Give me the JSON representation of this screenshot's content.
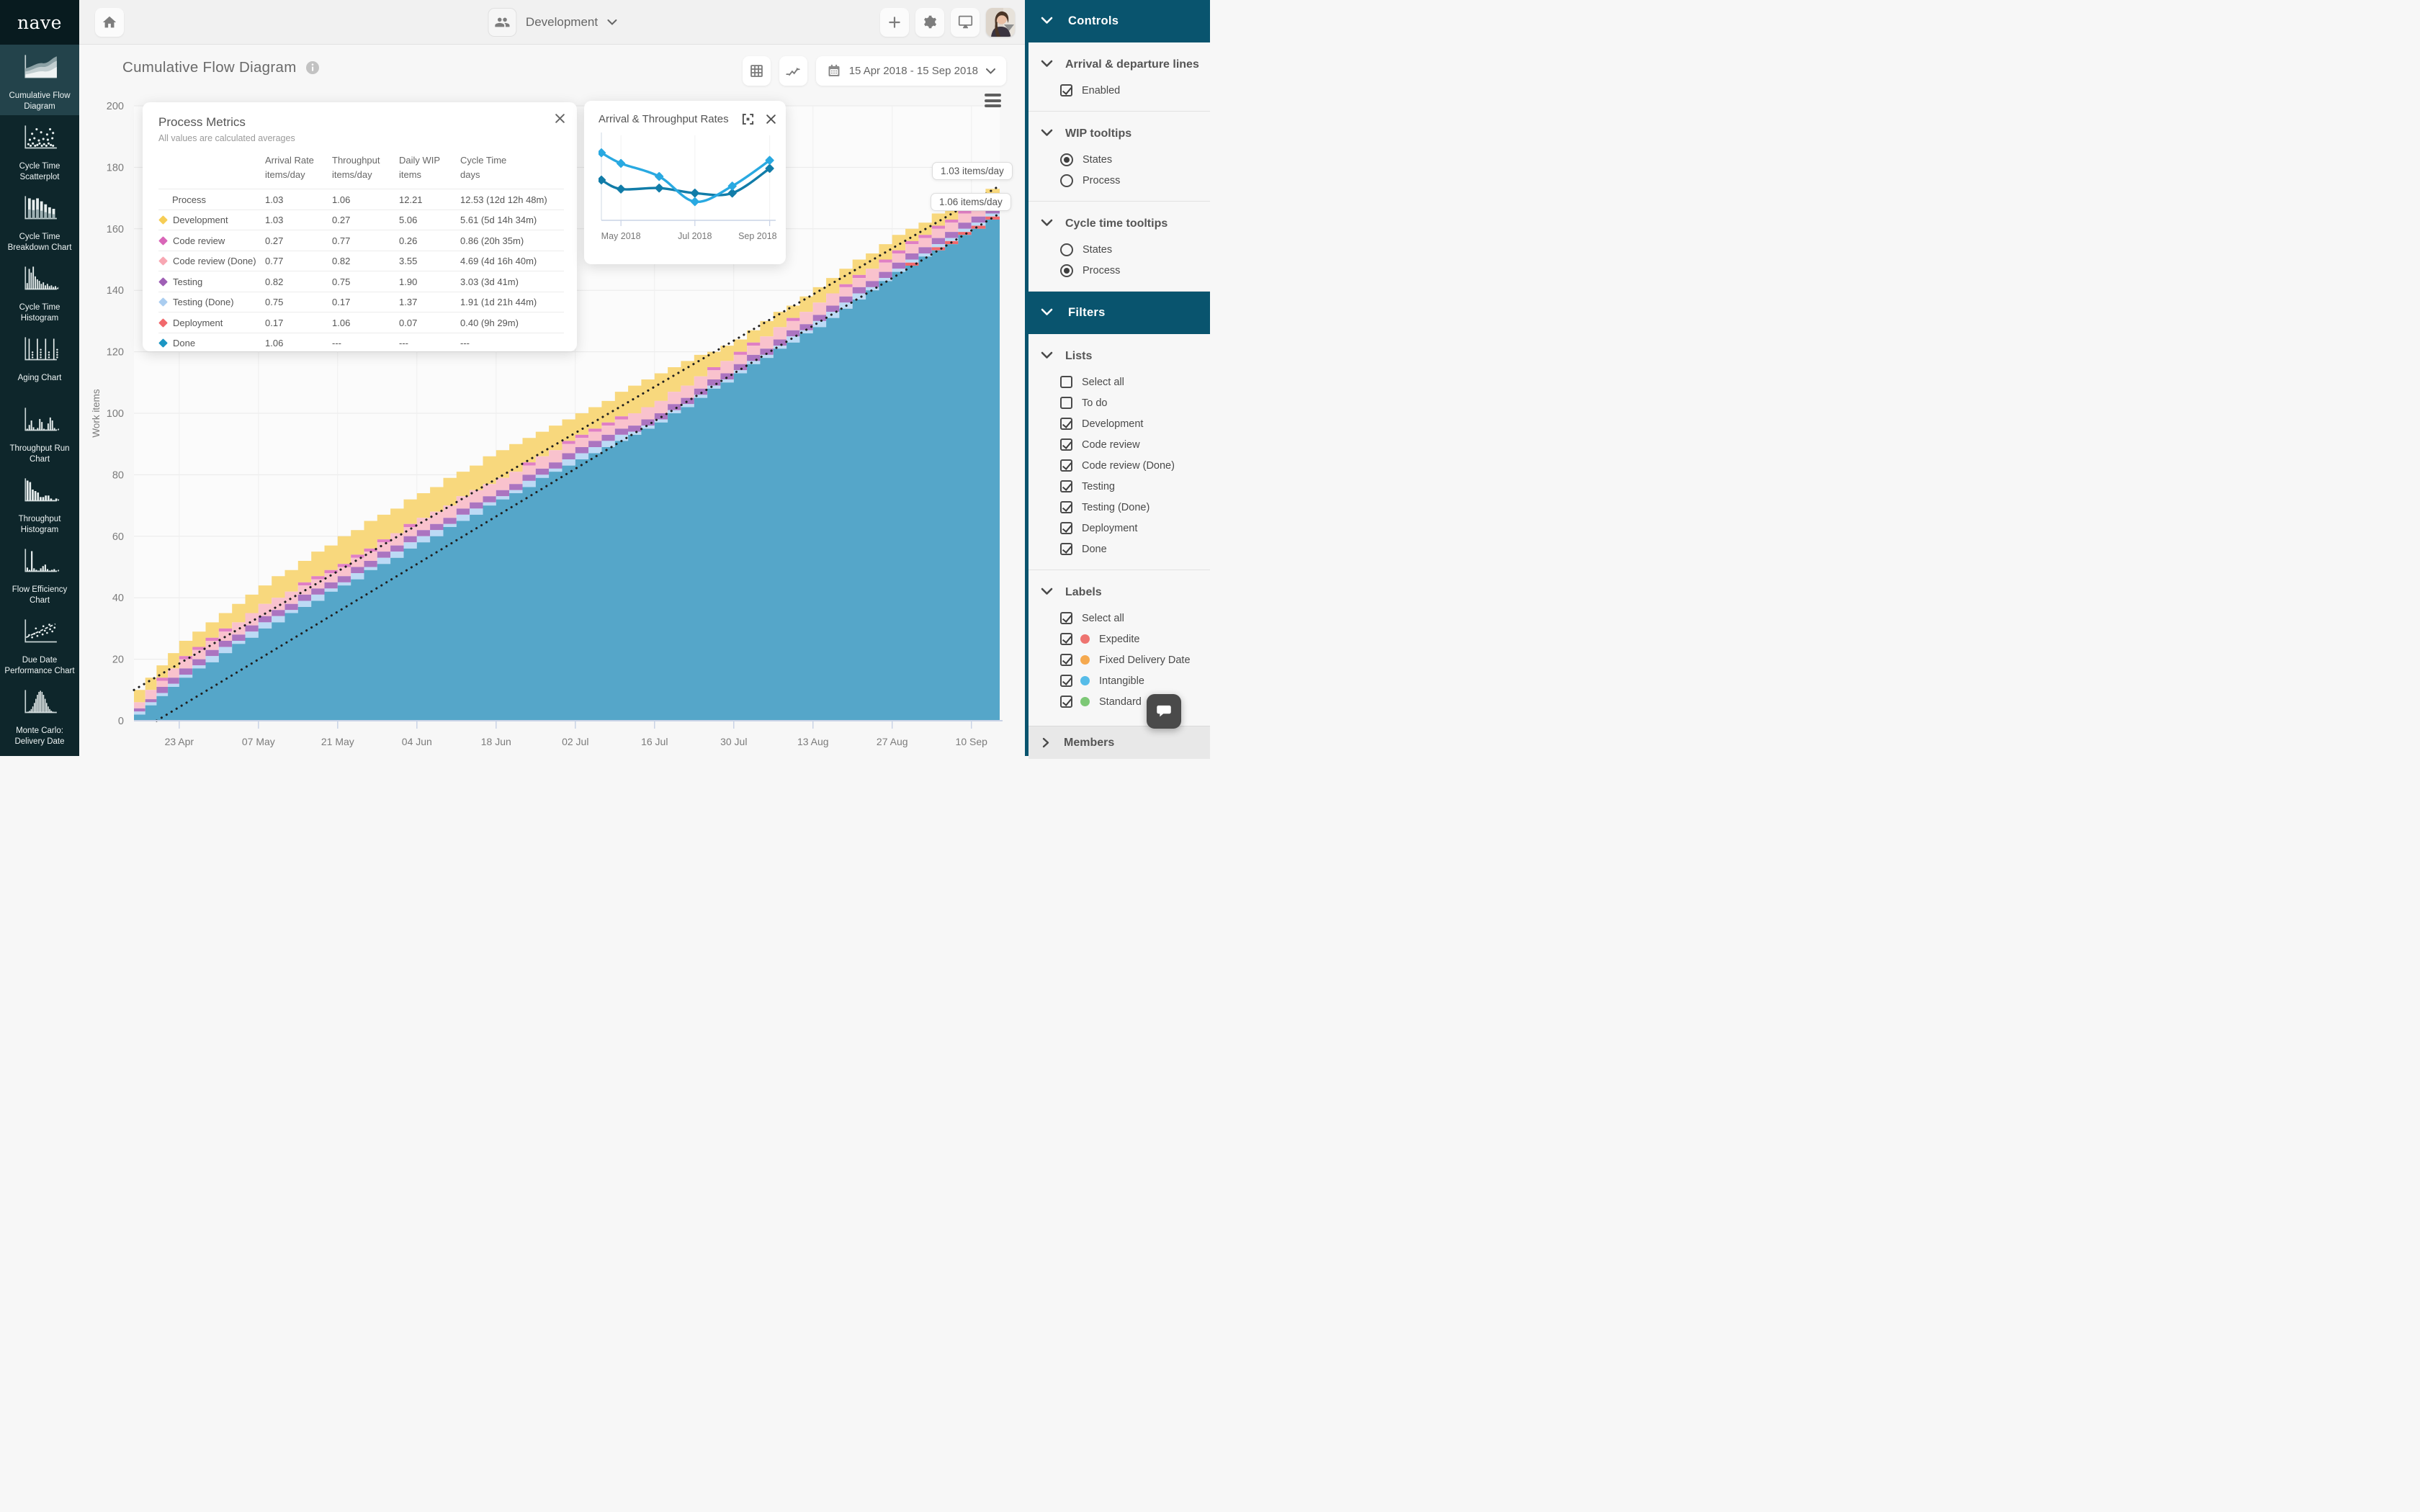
{
  "app": {
    "logo": "nave"
  },
  "topbar": {
    "board_name": "Development"
  },
  "left_sidebar": {
    "items": [
      {
        "label": "Cumulative Flow Diagram",
        "icon": "cfd-icon",
        "selected": true
      },
      {
        "label": "Cycle Time Scatterplot",
        "icon": "scatterplot-icon",
        "selected": false
      },
      {
        "label": "Cycle Time Breakdown Chart",
        "icon": "breakdown-icon",
        "selected": false
      },
      {
        "label": "Cycle Time Histogram",
        "icon": "histogram-icon",
        "selected": false
      },
      {
        "label": "Aging Chart",
        "icon": "aging-icon",
        "selected": false
      },
      {
        "label": "Throughput Run Chart",
        "icon": "run-chart-icon",
        "selected": false
      },
      {
        "label": "Throughput Histogram",
        "icon": "throughput-histogram-icon",
        "selected": false
      },
      {
        "label": "Flow Efficiency Chart",
        "icon": "flow-efficiency-icon",
        "selected": false
      },
      {
        "label": "Due Date Performance Chart",
        "icon": "due-date-icon",
        "selected": false
      },
      {
        "label": "Monte Carlo: Delivery Date",
        "icon": "monte-carlo-icon",
        "selected": false
      }
    ]
  },
  "main": {
    "title": "Cumulative Flow Diagram",
    "date_range": "15 Apr 2018 - 15 Sep 2018"
  },
  "process_metrics": {
    "title": "Process Metrics",
    "subtitle": "All values are calculated averages",
    "columns": [
      {
        "main": "Arrival Rate",
        "sub": "items/day"
      },
      {
        "main": "Throughput",
        "sub": "items/day"
      },
      {
        "main": "Daily WIP",
        "sub": "items"
      },
      {
        "main": "Cycle Time",
        "sub": "days"
      }
    ],
    "rows": [
      {
        "name": "Process",
        "color": "",
        "arrival": "1.03",
        "throughput": "1.06",
        "wip": "12.21",
        "cycle": "12.53 (12d 12h 48m)"
      },
      {
        "name": "Development",
        "color": "#f6cd55",
        "arrival": "1.03",
        "throughput": "0.27",
        "wip": "5.06",
        "cycle": "5.61 (5d 14h 34m)"
      },
      {
        "name": "Code review",
        "color": "#d966b8",
        "arrival": "0.27",
        "throughput": "0.77",
        "wip": "0.26",
        "cycle": "0.86 (20h 35m)"
      },
      {
        "name": "Code review (Done)",
        "color": "#f8a7b3",
        "arrival": "0.77",
        "throughput": "0.82",
        "wip": "3.55",
        "cycle": "4.69 (4d 16h 40m)"
      },
      {
        "name": "Testing",
        "color": "#9f5fb5",
        "arrival": "0.82",
        "throughput": "0.75",
        "wip": "1.90",
        "cycle": "3.03 (3d 41m)"
      },
      {
        "name": "Testing (Done)",
        "color": "#aacdf0",
        "arrival": "0.75",
        "throughput": "0.17",
        "wip": "1.37",
        "cycle": "1.91 (1d 21h 44m)"
      },
      {
        "name": "Deployment",
        "color": "#f1696c",
        "arrival": "0.17",
        "throughput": "1.06",
        "wip": "0.07",
        "cycle": "0.40 (9h 29m)"
      },
      {
        "name": "Done",
        "color": "#1c96c3",
        "arrival": "1.06",
        "throughput": "---",
        "wip": "---",
        "cycle": "---"
      }
    ]
  },
  "right_sidebar": {
    "members_label": "Members",
    "panels": [
      {
        "header": "Controls",
        "sections": [
          {
            "title": "Arrival & departure lines",
            "options": [
              {
                "type": "checkbox",
                "label": "Enabled",
                "checked": true
              }
            ]
          },
          {
            "title": "WIP tooltips",
            "options": [
              {
                "type": "radio",
                "label": "States",
                "checked": true
              },
              {
                "type": "radio",
                "label": "Process",
                "checked": false
              }
            ]
          },
          {
            "title": "Cycle time tooltips",
            "options": [
              {
                "type": "radio",
                "label": "States",
                "checked": false
              },
              {
                "type": "radio",
                "label": "Process",
                "checked": true
              }
            ]
          }
        ]
      },
      {
        "header": "Filters",
        "sections": [
          {
            "title": "Lists",
            "options": [
              {
                "type": "checkbox",
                "label": "Select all",
                "checked": false
              },
              {
                "type": "checkbox",
                "label": "To do",
                "checked": false
              },
              {
                "type": "checkbox",
                "label": "Development",
                "checked": true
              },
              {
                "type": "checkbox",
                "label": "Code review",
                "checked": true
              },
              {
                "type": "checkbox",
                "label": "Code review (Done)",
                "checked": true
              },
              {
                "type": "checkbox",
                "label": "Testing",
                "checked": true
              },
              {
                "type": "checkbox",
                "label": "Testing (Done)",
                "checked": true
              },
              {
                "type": "checkbox",
                "label": "Deployment",
                "checked": true
              },
              {
                "type": "checkbox",
                "label": "Done",
                "checked": true
              }
            ]
          },
          {
            "title": "Labels",
            "options": [
              {
                "type": "checkbox",
                "label": "Select all",
                "checked": true
              },
              {
                "type": "checkbox",
                "label": "Expedite",
                "checked": true,
                "dot": "#ee7470"
              },
              {
                "type": "checkbox",
                "label": "Fixed Delivery Date",
                "checked": true,
                "dot": "#f5a94f"
              },
              {
                "type": "checkbox",
                "label": "Intangible",
                "checked": true,
                "dot": "#56bce8"
              },
              {
                "type": "checkbox",
                "label": "Standard",
                "checked": true,
                "dot": "#7dc876"
              }
            ]
          }
        ]
      }
    ]
  },
  "chart_data": [
    {
      "type": "area",
      "title": "Cumulative Flow Diagram",
      "ylabel": "Work items",
      "ylim": [
        0,
        200
      ],
      "y_ticks": [
        0,
        20,
        40,
        60,
        80,
        100,
        120,
        140,
        160,
        180,
        200
      ],
      "x_domain_days": [
        0,
        153
      ],
      "x_ticks": [
        {
          "day": 8,
          "label": "23 Apr"
        },
        {
          "day": 22,
          "label": "07 May"
        },
        {
          "day": 36,
          "label": "21 May"
        },
        {
          "day": 50,
          "label": "04 Jun"
        },
        {
          "day": 64,
          "label": "18 Jun"
        },
        {
          "day": 78,
          "label": "02 Jul"
        },
        {
          "day": 92,
          "label": "16 Jul"
        },
        {
          "day": 106,
          "label": "30 Jul"
        },
        {
          "day": 120,
          "label": "13 Aug"
        },
        {
          "day": 134,
          "label": "27 Aug"
        },
        {
          "day": 148,
          "label": "10 Sep"
        }
      ],
      "sample_days": [
        0,
        8,
        22,
        36,
        50,
        64,
        78,
        92,
        106,
        120,
        134,
        148,
        153
      ],
      "series": [
        {
          "name": "Done",
          "color": "#55a6c9",
          "values": [
            2,
            14,
            30,
            44,
            58,
            72,
            85,
            97,
            113,
            128,
            146,
            160,
            165
          ]
        },
        {
          "name": "Deployment",
          "color": "#f1696c",
          "values": [
            0,
            0,
            0,
            0,
            0,
            0,
            0,
            0,
            0,
            0,
            0,
            1,
            1
          ]
        },
        {
          "name": "Testing (Done)",
          "color": "#bcdaf5",
          "values": [
            1,
            1,
            2,
            1,
            2,
            1,
            2,
            1,
            1,
            2,
            1,
            1,
            1
          ]
        },
        {
          "name": "Testing",
          "color": "#ab74c0",
          "values": [
            1,
            2,
            2,
            2,
            2,
            2,
            2,
            2,
            2,
            2,
            2,
            2,
            1
          ]
        },
        {
          "name": "Code review (Done)",
          "color": "#f9c2cd",
          "values": [
            2,
            3,
            4,
            3,
            4,
            4,
            3,
            4,
            3,
            4,
            3,
            3,
            2
          ]
        },
        {
          "name": "Code review",
          "color": "#e07fc4",
          "values": [
            0,
            1,
            0,
            1,
            0,
            0,
            1,
            0,
            1,
            0,
            1,
            1,
            1
          ]
        },
        {
          "name": "Development",
          "color": "#f8d87d",
          "values": [
            4,
            5,
            6,
            9,
            8,
            9,
            7,
            9,
            4,
            5,
            5,
            3,
            4
          ]
        }
      ],
      "trend_lines": [
        {
          "name": "Arrival rate",
          "label": "1.03 items/day",
          "from_day": 0,
          "from_value": 10,
          "to_day": 153,
          "to_value": 174
        },
        {
          "name": "Departure rate",
          "label": "1.06 items/day",
          "from_day": 4,
          "from_value": 0,
          "to_day": 153,
          "to_value": 165
        }
      ]
    },
    {
      "type": "line",
      "title": "Arrival & Throughput Rates",
      "x_positions": [
        0,
        0.115,
        0.34,
        0.55,
        0.77,
        0.99
      ],
      "x_ticks": [
        {
          "pos": 1,
          "label": "May 2018"
        },
        {
          "pos": 3,
          "label": "Jul 2018"
        },
        {
          "pos": 5,
          "label": "Sep 2018"
        }
      ],
      "ylim": [
        0.2,
        1.8
      ],
      "series": [
        {
          "name": "Arrival rate",
          "color": "#29a9e1",
          "values": [
            1.54,
            1.33,
            1.07,
            0.57,
            0.88,
            1.39
          ]
        },
        {
          "name": "Throughput",
          "color": "#117ca8",
          "values": [
            1.0,
            0.82,
            0.84,
            0.74,
            0.74,
            1.23
          ]
        }
      ]
    }
  ]
}
